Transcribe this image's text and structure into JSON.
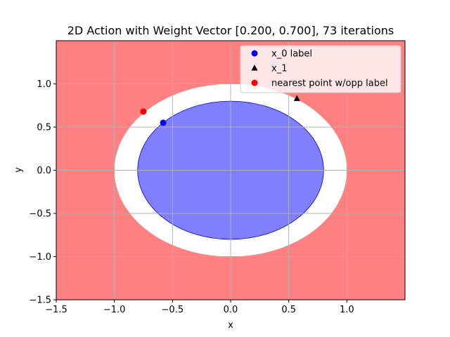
{
  "chart_data": {
    "type": "scatter",
    "title": "2D Action with Weight Vector [0.200, 0.700], 73 iterations",
    "xlabel": "x",
    "ylabel": "y",
    "xlim": [
      -1.5,
      1.5
    ],
    "ylim": [
      -1.5,
      1.5
    ],
    "x_ticks": [
      -1.5,
      -1.0,
      -0.5,
      0.0,
      0.5,
      1.0
    ],
    "x_tick_labels": [
      "−1.5",
      "−1.0",
      "−0.5",
      "0.0",
      "0.5",
      "1.0"
    ],
    "y_ticks": [
      -1.5,
      -1.0,
      -0.5,
      0.0,
      0.5,
      1.0
    ],
    "y_tick_labels": [
      "−1.5",
      "−1.0",
      "−0.5",
      "0.0",
      "0.5",
      "1.0"
    ],
    "grid": true,
    "legend_position": "top-right",
    "background_region": {
      "color": "#ff8080"
    },
    "regions": [
      {
        "shape": "ellipse",
        "center": [
          0.0,
          0.0
        ],
        "radii": [
          1.0,
          1.0
        ],
        "color": "#ffffff"
      },
      {
        "shape": "ellipse",
        "center": [
          0.0,
          0.0
        ],
        "radii": [
          0.8,
          0.8
        ],
        "color": "#8080ff",
        "edge_color": "#0000cc"
      }
    ],
    "series": [
      {
        "name": "x_0 label",
        "marker": "circle",
        "color": "#0000ff",
        "points": [
          [
            -0.58,
            0.55
          ]
        ]
      },
      {
        "name": "x_1",
        "marker": "triangle",
        "color": "#000000",
        "points": [
          [
            0.57,
            0.83
          ]
        ]
      },
      {
        "name": "nearest point w/opp label",
        "marker": "circle",
        "color": "#ff0000",
        "points": [
          [
            -0.75,
            0.68
          ]
        ]
      }
    ]
  }
}
